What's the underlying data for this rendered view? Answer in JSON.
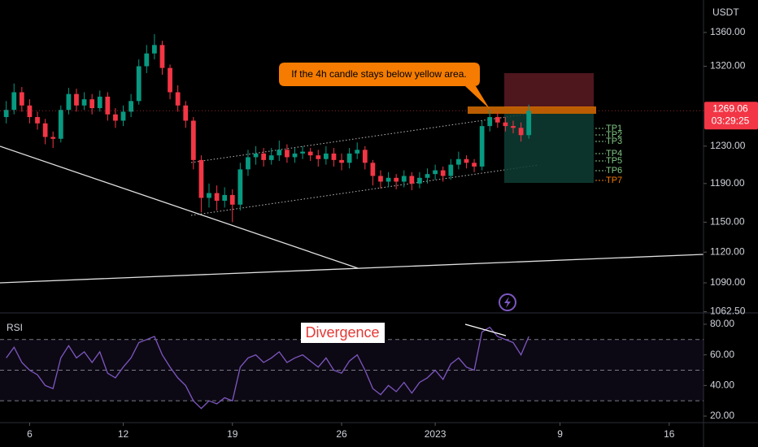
{
  "chart_data": [
    {
      "type": "candlestick",
      "unit": "USDT",
      "log_scale": true,
      "up_color": "#089981",
      "down_color": "#f23645",
      "x": [
        4.5,
        5,
        5.5,
        6,
        6.5,
        7,
        7.5,
        8,
        8.5,
        9,
        9.5,
        10,
        10.5,
        11,
        11.5,
        12,
        12.5,
        13,
        13.5,
        14,
        14.5,
        15,
        15.5,
        16,
        16.5,
        17,
        17.5,
        18,
        18.5,
        19,
        19.5,
        20,
        20.5,
        21,
        21.5,
        22,
        22.5,
        23,
        23.5,
        24,
        24.5,
        25,
        25.5,
        26,
        26.5,
        27,
        27.5,
        28,
        28.5,
        29,
        29.5,
        30,
        30.5,
        31,
        31.5,
        32,
        32.5,
        33,
        33.5,
        34,
        34.5,
        35,
        35.5,
        36,
        36.5,
        37,
        37.5,
        38
      ],
      "open": [
        1262,
        1270,
        1290,
        1275,
        1262,
        1255,
        1240,
        1238,
        1270,
        1288,
        1275,
        1282,
        1272,
        1285,
        1265,
        1258,
        1268,
        1280,
        1320,
        1335,
        1345,
        1318,
        1290,
        1275,
        1258,
        1215,
        1175,
        1180,
        1172,
        1178,
        1168,
        1205,
        1218,
        1222,
        1215,
        1220,
        1226,
        1218,
        1222,
        1224,
        1220,
        1216,
        1222,
        1215,
        1212,
        1222,
        1226,
        1212,
        1198,
        1192,
        1196,
        1192,
        1198,
        1190,
        1196,
        1200,
        1204,
        1198,
        1210,
        1216,
        1212,
        1208,
        1252,
        1262,
        1256,
        1252,
        1250,
        1242
      ],
      "high": [
        1280,
        1300,
        1296,
        1282,
        1268,
        1260,
        1246,
        1275,
        1295,
        1294,
        1290,
        1288,
        1292,
        1290,
        1272,
        1275,
        1288,
        1328,
        1345,
        1358,
        1350,
        1322,
        1298,
        1280,
        1262,
        1220,
        1190,
        1188,
        1186,
        1184,
        1212,
        1226,
        1230,
        1228,
        1228,
        1236,
        1232,
        1228,
        1230,
        1228,
        1226,
        1230,
        1228,
        1222,
        1228,
        1234,
        1230,
        1215,
        1204,
        1202,
        1200,
        1204,
        1202,
        1202,
        1206,
        1210,
        1208,
        1216,
        1224,
        1220,
        1216,
        1258,
        1270,
        1268,
        1262,
        1258,
        1256,
        1276
      ],
      "low": [
        1255,
        1265,
        1268,
        1255,
        1248,
        1232,
        1228,
        1234,
        1265,
        1268,
        1270,
        1265,
        1268,
        1258,
        1250,
        1252,
        1262,
        1276,
        1312,
        1328,
        1310,
        1282,
        1268,
        1250,
        1205,
        1160,
        1165,
        1162,
        1165,
        1150,
        1162,
        1198,
        1210,
        1208,
        1210,
        1214,
        1212,
        1212,
        1216,
        1214,
        1208,
        1210,
        1208,
        1204,
        1206,
        1216,
        1205,
        1188,
        1185,
        1186,
        1184,
        1186,
        1183,
        1185,
        1190,
        1194,
        1192,
        1194,
        1205,
        1206,
        1202,
        1204,
        1246,
        1250,
        1246,
        1244,
        1235,
        1238
      ],
      "close": [
        1270,
        1290,
        1275,
        1262,
        1255,
        1240,
        1238,
        1270,
        1288,
        1275,
        1282,
        1272,
        1285,
        1265,
        1258,
        1268,
        1280,
        1320,
        1335,
        1345,
        1318,
        1290,
        1275,
        1258,
        1215,
        1175,
        1180,
        1172,
        1178,
        1168,
        1205,
        1218,
        1222,
        1215,
        1220,
        1226,
        1218,
        1222,
        1224,
        1220,
        1216,
        1222,
        1215,
        1212,
        1222,
        1226,
        1212,
        1198,
        1192,
        1196,
        1192,
        1198,
        1190,
        1196,
        1200,
        1204,
        1198,
        1210,
        1216,
        1212,
        1208,
        1252,
        1262,
        1256,
        1252,
        1250,
        1242,
        1269
      ],
      "xlim": [
        4.1,
        49.2
      ],
      "xticks": [
        6,
        12,
        19,
        26,
        {
          "value": 32,
          "label": "2023"
        },
        {
          "value": 40,
          "label": "9"
        },
        {
          "value": 47,
          "label": "16"
        }
      ],
      "ylim": [
        1061.4,
        1399.6
      ],
      "yticks": [
        {
          "value": 1062.5,
          "label": "1062.50"
        },
        {
          "value": 1090,
          "label": "1090.00"
        },
        {
          "value": 1120,
          "label": "1120.00"
        },
        {
          "value": 1150,
          "label": "1150.00"
        },
        {
          "value": 1190,
          "label": "1190.00"
        },
        {
          "value": 1230,
          "label": "1230.00"
        },
        {
          "value": 1320,
          "label": "1320.00"
        },
        {
          "value": 1360,
          "label": "1360.00"
        }
      ],
      "last_price": 1269.06,
      "countdown": "03:29:25",
      "annotation": "If the 4h candle stays below yellow area.",
      "targets": [
        "TP1",
        "TP2",
        "TP3",
        "TP4",
        "TP5",
        "TP6",
        "TP7"
      ]
    },
    {
      "type": "line",
      "title": "RSI",
      "annotation": "Divergence",
      "color": "#7e57c2",
      "x": [
        4.5,
        5,
        5.5,
        6,
        6.5,
        7,
        7.5,
        8,
        8.5,
        9,
        9.5,
        10,
        10.5,
        11,
        11.5,
        12,
        12.5,
        13,
        13.5,
        14,
        14.5,
        15,
        15.5,
        16,
        16.5,
        17,
        17.5,
        18,
        18.5,
        19,
        19.5,
        20,
        20.5,
        21,
        21.5,
        22,
        22.5,
        23,
        23.5,
        24,
        24.5,
        25,
        25.5,
        26,
        26.5,
        27,
        27.5,
        28,
        28.5,
        29,
        29.5,
        30,
        30.5,
        31,
        31.5,
        32,
        32.5,
        33,
        33.5,
        34,
        34.5,
        35,
        35.5,
        36,
        36.5,
        37,
        37.5,
        38
      ],
      "values": [
        58,
        65,
        55,
        50,
        47,
        40,
        38,
        58,
        66,
        58,
        62,
        55,
        62,
        48,
        45,
        52,
        58,
        68,
        70,
        72,
        60,
        52,
        45,
        40,
        30,
        25,
        30,
        28,
        32,
        30,
        52,
        58,
        60,
        55,
        58,
        62,
        55,
        58,
        60,
        56,
        52,
        58,
        50,
        48,
        56,
        60,
        50,
        38,
        34,
        40,
        36,
        42,
        35,
        42,
        45,
        50,
        44,
        54,
        58,
        52,
        50,
        75,
        78,
        72,
        70,
        68,
        60,
        72
      ],
      "ylim": [
        14.7,
        85.8
      ],
      "yticks": [
        {
          "value": 20,
          "label": "20.00"
        },
        {
          "value": 40,
          "label": "40.00"
        },
        {
          "value": 60,
          "label": "60.00"
        },
        {
          "value": 80,
          "label": "80.00"
        }
      ],
      "levels": [
        30,
        50,
        70
      ]
    }
  ]
}
